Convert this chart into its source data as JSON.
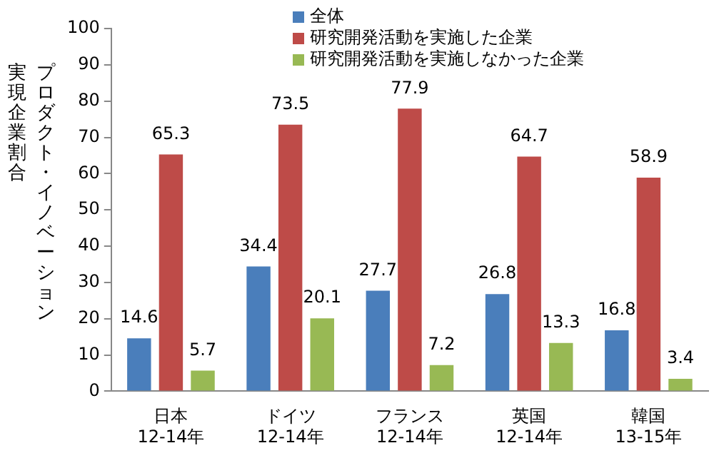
{
  "chart_data": {
    "type": "bar",
    "ylabel": "プロダクト・イノベーション実現企業割合",
    "categories": [
      "日本\n12-14年",
      "ドイツ\n12-14年",
      "フランス\n12-14年",
      "英国\n12-14年",
      "韓国\n13-15年"
    ],
    "series": [
      {
        "name": "全体",
        "color": "#4a7ebb",
        "values": [
          14.6,
          34.4,
          27.7,
          26.8,
          16.8
        ]
      },
      {
        "name": "研究開発活動を実施した企業",
        "color": "#be4b48",
        "values": [
          65.3,
          73.5,
          77.9,
          64.7,
          58.9
        ]
      },
      {
        "name": "研究開発活動を実施しなかった企業",
        "color": "#98b954",
        "values": [
          5.7,
          20.1,
          7.2,
          13.3,
          3.4
        ]
      }
    ],
    "ylim": [
      0,
      100
    ],
    "yticks": [
      0,
      10,
      20,
      30,
      40,
      50,
      60,
      70,
      80,
      90,
      100
    ],
    "grid": false,
    "legend": "top right",
    "data_labels": true
  }
}
